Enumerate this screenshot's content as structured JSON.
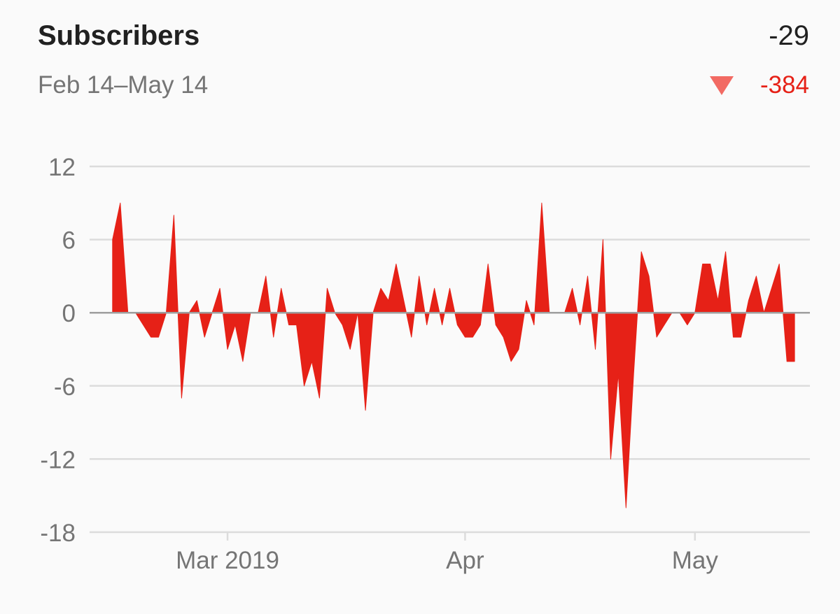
{
  "header": {
    "title": "Subscribers",
    "total": "-29",
    "date_range": "Feb 14–May 14",
    "change": "-384",
    "change_icon": "down-triangle-icon"
  },
  "colors": {
    "area": "#e62117",
    "grid": "#dcdcdc",
    "zero_line": "#9e9e9e",
    "axis_text": "#757575",
    "change_icon": "#f26a63"
  },
  "chart_data": {
    "type": "area",
    "title": "Subscribers",
    "subtitle": "Feb 14–May 14",
    "xlabel": "",
    "ylabel": "",
    "ylim": [
      -18,
      12
    ],
    "yticks": [
      12,
      6,
      0,
      -6,
      -12,
      -18
    ],
    "xlim": [
      "2019-02-11",
      "2019-05-16"
    ],
    "xticks": [
      {
        "label": "Mar 2019",
        "date": "2019-03-01"
      },
      {
        "label": "Apr",
        "date": "2019-04-01"
      },
      {
        "label": "May",
        "date": "2019-05-01"
      }
    ],
    "grid": true,
    "legend": "none",
    "series": [
      {
        "x": [
          "2019-02-14",
          "2019-02-15",
          "2019-02-16",
          "2019-02-17",
          "2019-02-18",
          "2019-02-19",
          "2019-02-20",
          "2019-02-21",
          "2019-02-22",
          "2019-02-23",
          "2019-02-24",
          "2019-02-25",
          "2019-02-26",
          "2019-02-27",
          "2019-02-28",
          "2019-03-01",
          "2019-03-02",
          "2019-03-03",
          "2019-03-04",
          "2019-03-05",
          "2019-03-06",
          "2019-03-07",
          "2019-03-08",
          "2019-03-09",
          "2019-03-10",
          "2019-03-11",
          "2019-03-12",
          "2019-03-13",
          "2019-03-14",
          "2019-03-15",
          "2019-03-16",
          "2019-03-17",
          "2019-03-18",
          "2019-03-19",
          "2019-03-20",
          "2019-03-21",
          "2019-03-22",
          "2019-03-23",
          "2019-03-24",
          "2019-03-25",
          "2019-03-26",
          "2019-03-27",
          "2019-03-28",
          "2019-03-29",
          "2019-03-30",
          "2019-03-31",
          "2019-04-01",
          "2019-04-02",
          "2019-04-03",
          "2019-04-04",
          "2019-04-05",
          "2019-04-06",
          "2019-04-07",
          "2019-04-08",
          "2019-04-09",
          "2019-04-10",
          "2019-04-11",
          "2019-04-12",
          "2019-04-13",
          "2019-04-14",
          "2019-04-15",
          "2019-04-16",
          "2019-04-17",
          "2019-04-18",
          "2019-04-19",
          "2019-04-20",
          "2019-04-21",
          "2019-04-22",
          "2019-04-23",
          "2019-04-24",
          "2019-04-25",
          "2019-04-26",
          "2019-04-27",
          "2019-04-28",
          "2019-04-29",
          "2019-04-30",
          "2019-05-01",
          "2019-05-02",
          "2019-05-03",
          "2019-05-04",
          "2019-05-05",
          "2019-05-06",
          "2019-05-07",
          "2019-05-08",
          "2019-05-09",
          "2019-05-10",
          "2019-05-11",
          "2019-05-12",
          "2019-05-13",
          "2019-05-14"
        ],
        "values": [
          6,
          9,
          0,
          0,
          -1,
          -2,
          -2,
          0,
          8,
          -7,
          0,
          1,
          -2,
          0,
          2,
          -3,
          -1,
          -4,
          0,
          0,
          3,
          -2,
          2,
          -1,
          -1,
          -6,
          -4,
          -7,
          2,
          0,
          -1,
          -3,
          0,
          -8,
          0,
          2,
          1,
          4,
          1,
          -2,
          3,
          -1,
          2,
          -1,
          2,
          -1,
          -2,
          -2,
          -1,
          4,
          -1,
          -2,
          -4,
          -3,
          1,
          -1,
          9,
          0,
          0,
          0,
          2,
          -1,
          3,
          -3,
          6,
          -12,
          -5,
          -16,
          -5,
          5,
          3,
          -2,
          -1,
          0,
          0,
          -1,
          0,
          4,
          4,
          1,
          5,
          -2,
          -2,
          1,
          3,
          0,
          2,
          4,
          -4,
          -4
        ]
      }
    ]
  }
}
